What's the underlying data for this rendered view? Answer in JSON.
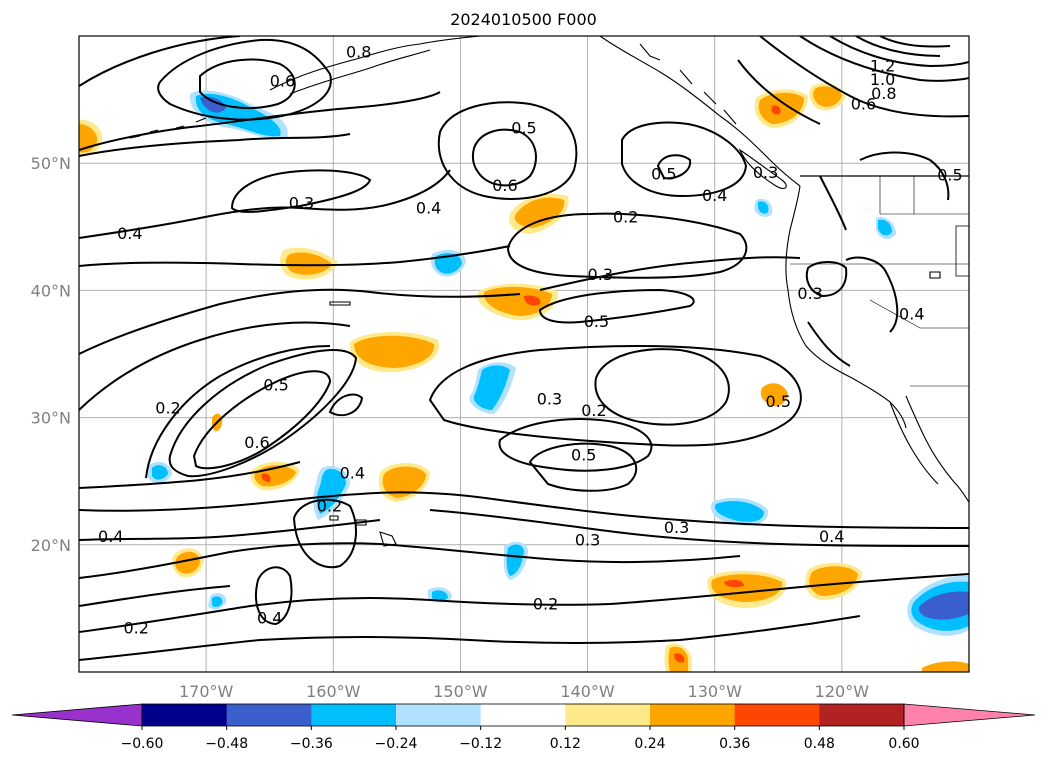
{
  "title": "2024010500 F000",
  "map": {
    "extent": {
      "lon_min": -180,
      "lon_max": -110,
      "lat_min": 10,
      "lat_max": 60
    },
    "lon_ticks": [
      {
        "value": -170,
        "label": "170°W"
      },
      {
        "value": -160,
        "label": "160°W"
      },
      {
        "value": -150,
        "label": "150°W"
      },
      {
        "value": -140,
        "label": "140°W"
      },
      {
        "value": -130,
        "label": "130°W"
      },
      {
        "value": -120,
        "label": "120°W"
      }
    ],
    "lat_ticks": [
      {
        "value": 20,
        "label": "20°N"
      },
      {
        "value": 30,
        "label": "30°N"
      },
      {
        "value": 40,
        "label": "40°N"
      },
      {
        "value": 50,
        "label": "50°N"
      }
    ],
    "gridlines": true,
    "contour_labels": [
      {
        "lon": -164,
        "lat": 56.5,
        "text": "0.6"
      },
      {
        "lon": -158,
        "lat": 58.8,
        "text": "0.8"
      },
      {
        "lon": -145,
        "lat": 52.8,
        "text": "0.5"
      },
      {
        "lon": -146.5,
        "lat": 48.3,
        "text": "0.6"
      },
      {
        "lon": -162.5,
        "lat": 46.9,
        "text": "0.3"
      },
      {
        "lon": -176,
        "lat": 44.5,
        "text": "0.4"
      },
      {
        "lon": -152.5,
        "lat": 46.5,
        "text": "0.4"
      },
      {
        "lon": -134,
        "lat": 49.2,
        "text": "0.5"
      },
      {
        "lon": -130,
        "lat": 47.5,
        "text": "0.4"
      },
      {
        "lon": -137,
        "lat": 45.8,
        "text": "0.2"
      },
      {
        "lon": -139,
        "lat": 41.3,
        "text": "0.3"
      },
      {
        "lon": -139.3,
        "lat": 37.6,
        "text": "0.5"
      },
      {
        "lon": -122.5,
        "lat": 39.8,
        "text": "0.3"
      },
      {
        "lon": -126,
        "lat": 49.3,
        "text": "0.3"
      },
      {
        "lon": -114.5,
        "lat": 38.2,
        "text": "0.4"
      },
      {
        "lon": -116.8,
        "lat": 57.7,
        "text": "1.2"
      },
      {
        "lon": -116.8,
        "lat": 56.6,
        "text": "1.0"
      },
      {
        "lon": -116.7,
        "lat": 55.5,
        "text": "0.8"
      },
      {
        "lon": -118.3,
        "lat": 54.7,
        "text": "0.6"
      },
      {
        "lon": -111.5,
        "lat": 49.1,
        "text": "0.5"
      },
      {
        "lon": -125,
        "lat": 31.3,
        "text": "0.5"
      },
      {
        "lon": -164.5,
        "lat": 32.6,
        "text": "0.5"
      },
      {
        "lon": -173,
        "lat": 30.8,
        "text": "0.2"
      },
      {
        "lon": -166,
        "lat": 28.1,
        "text": "0.6"
      },
      {
        "lon": -158.5,
        "lat": 25.7,
        "text": "0.4"
      },
      {
        "lon": -160.3,
        "lat": 23.1,
        "text": "0.2"
      },
      {
        "lon": -143,
        "lat": 31.5,
        "text": "0.3"
      },
      {
        "lon": -139.5,
        "lat": 30.6,
        "text": "0.2"
      },
      {
        "lon": -140.3,
        "lat": 27.1,
        "text": "0.5"
      },
      {
        "lon": -133,
        "lat": 21.4,
        "text": "0.3"
      },
      {
        "lon": -120.8,
        "lat": 20.7,
        "text": "0.4"
      },
      {
        "lon": -140,
        "lat": 20.4,
        "text": "0.3"
      },
      {
        "lon": -143.3,
        "lat": 15.4,
        "text": "0.2"
      },
      {
        "lon": -165,
        "lat": 14.3,
        "text": "0.4"
      },
      {
        "lon": -175.5,
        "lat": 13.5,
        "text": "0.2"
      },
      {
        "lon": -177.5,
        "lat": 20.7,
        "text": "0.4"
      }
    ]
  },
  "colorbar": {
    "boundaries": [
      -0.6,
      -0.48,
      -0.36,
      -0.24,
      -0.12,
      0.12,
      0.24,
      0.36,
      0.48,
      0.6
    ],
    "colors": [
      "#9932cc",
      "#00008b",
      "#3a5fcd",
      "#00bfff",
      "#b0e2ff",
      "#ffffff",
      "#ffe98a",
      "#ffa500",
      "#ff4500",
      "#b22222",
      "#ff82ab"
    ],
    "tick_labels": [
      "−0.60",
      "−0.48",
      "−0.36",
      "−0.24",
      "−0.12",
      "0.12",
      "0.24",
      "0.36",
      "0.48",
      "0.60"
    ],
    "extend": "both"
  }
}
